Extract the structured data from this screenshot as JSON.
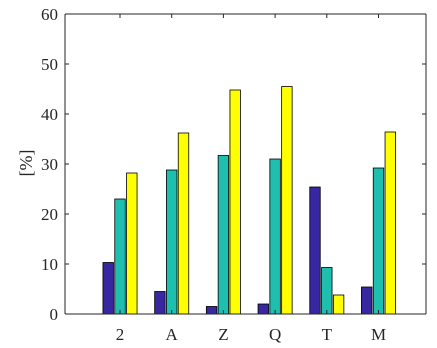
{
  "chart_data": {
    "type": "bar",
    "title": "",
    "xlabel": "",
    "ylabel": "[%]",
    "categories": [
      "2",
      "A",
      "Z",
      "Q",
      "T",
      "M"
    ],
    "series": [
      {
        "values": [
          10.3,
          4.5,
          1.5,
          2.0,
          25.4,
          5.4
        ],
        "color": "#3727a1"
      },
      {
        "values": [
          23.0,
          28.8,
          31.7,
          31.0,
          9.3,
          29.2
        ],
        "color": "#1fbfb0"
      },
      {
        "values": [
          28.2,
          36.2,
          44.8,
          45.5,
          3.8,
          36.4
        ],
        "color": "#ffff00"
      }
    ],
    "ylim": [
      0,
      60
    ],
    "yticks": [
      0,
      10,
      20,
      30,
      40,
      50,
      60
    ],
    "grid": false,
    "legend": "none"
  }
}
